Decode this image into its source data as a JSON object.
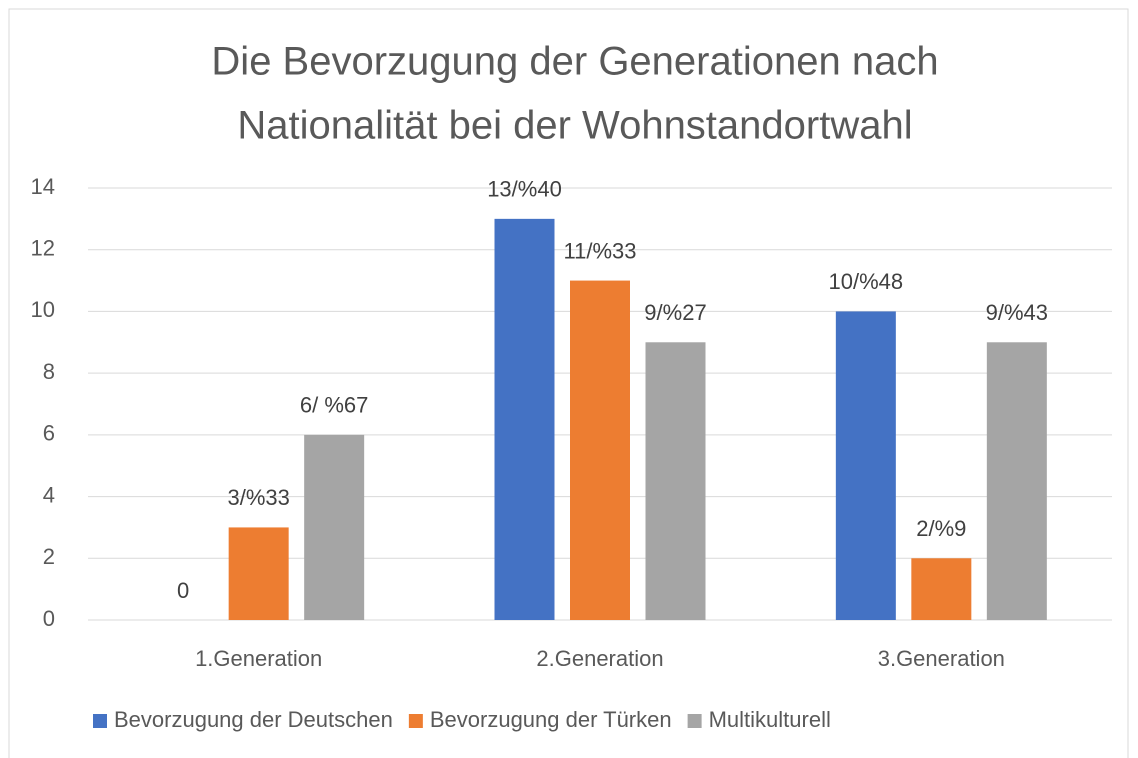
{
  "chart_data": {
    "type": "bar",
    "title": [
      "Die Bevorzugung der Generationen nach",
      "Nationalität bei der Wohnstandortwahl"
    ],
    "categories": [
      "1.Generation",
      "2.Generation",
      "3.Generation"
    ],
    "series": [
      {
        "name": "Bevorzugung der Deutschen",
        "color": "#4472c4",
        "values": [
          0,
          13,
          10
        ],
        "value_labels": [
          "0",
          "13/%40",
          "10/%48"
        ]
      },
      {
        "name": "Bevorzugung der Türken",
        "color": "#ed7d31",
        "values": [
          3,
          11,
          2
        ],
        "value_labels": [
          "3/%33",
          "11/%33",
          "2/%9"
        ]
      },
      {
        "name": "Multikulturell",
        "color": "#a5a5a5",
        "values": [
          6,
          9,
          9
        ],
        "value_labels": [
          "6/ %67",
          "9/%27",
          "9/%43"
        ]
      }
    ],
    "ylim": [
      0,
      14
    ],
    "yticks": [
      0,
      2,
      4,
      6,
      8,
      10,
      12,
      14
    ],
    "grid": true,
    "legend": "bottom"
  }
}
